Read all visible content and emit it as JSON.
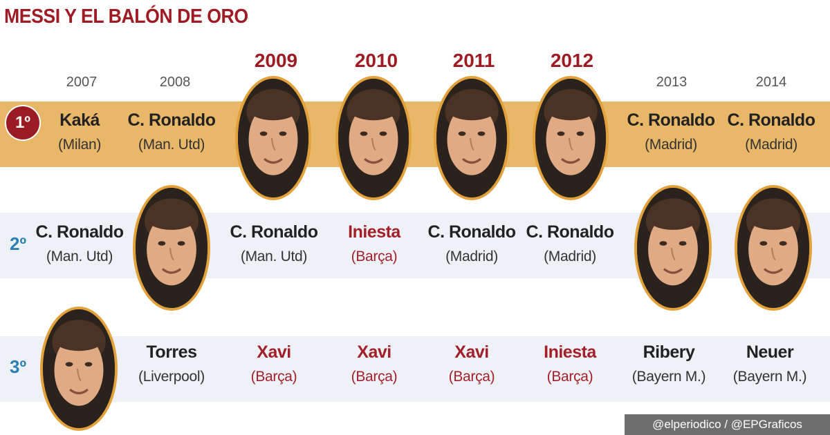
{
  "title": "MESSI Y EL BALÓN DE ORO",
  "ranks": {
    "first": "1º",
    "second": "2º",
    "third": "3º"
  },
  "years": [
    "2007",
    "2008",
    "2009",
    "2010",
    "2011",
    "2012",
    "2013",
    "2014"
  ],
  "messi_years": [
    "2009",
    "2010",
    "2011",
    "2012"
  ],
  "first": [
    {
      "name": "Kaká",
      "club": "(Milan)"
    },
    {
      "name": "C. Ronaldo",
      "club": "(Man. Utd)"
    },
    {
      "name": "C. Ronaldo",
      "club": "(Madrid)"
    },
    {
      "name": "C. Ronaldo",
      "club": "(Madrid)"
    }
  ],
  "second": [
    {
      "name": "C. Ronaldo",
      "club": "(Man. Utd)"
    },
    {
      "name": "C. Ronaldo",
      "club": "(Man. Utd)"
    },
    {
      "name": "Iniesta",
      "club": "(Barça)"
    },
    {
      "name": "C. Ronaldo",
      "club": "(Madrid)"
    },
    {
      "name": "C. Ronaldo",
      "club": "(Madrid)"
    }
  ],
  "third": [
    {
      "name": "Torres",
      "club": "(Liverpool)"
    },
    {
      "name": "Xavi",
      "club": "(Barça)"
    },
    {
      "name": "Xavi",
      "club": "(Barça)"
    },
    {
      "name": "Xavi",
      "club": "(Barça)"
    },
    {
      "name": "Iniesta",
      "club": "(Barça)"
    },
    {
      "name": "Ribery",
      "club": "(Bayern M.)"
    },
    {
      "name": "Neuer",
      "club": "(Bayern M.)"
    }
  ],
  "colors": {
    "title": "#9e1b24",
    "first_band": "#e8b768",
    "other_band": "#eef1f5",
    "barca_red": "#a3202a",
    "rank_blue": "#2c7fb3",
    "photo_ring": "#e3a13c"
  },
  "credit": "@elperiodico / @EPGraficos"
}
